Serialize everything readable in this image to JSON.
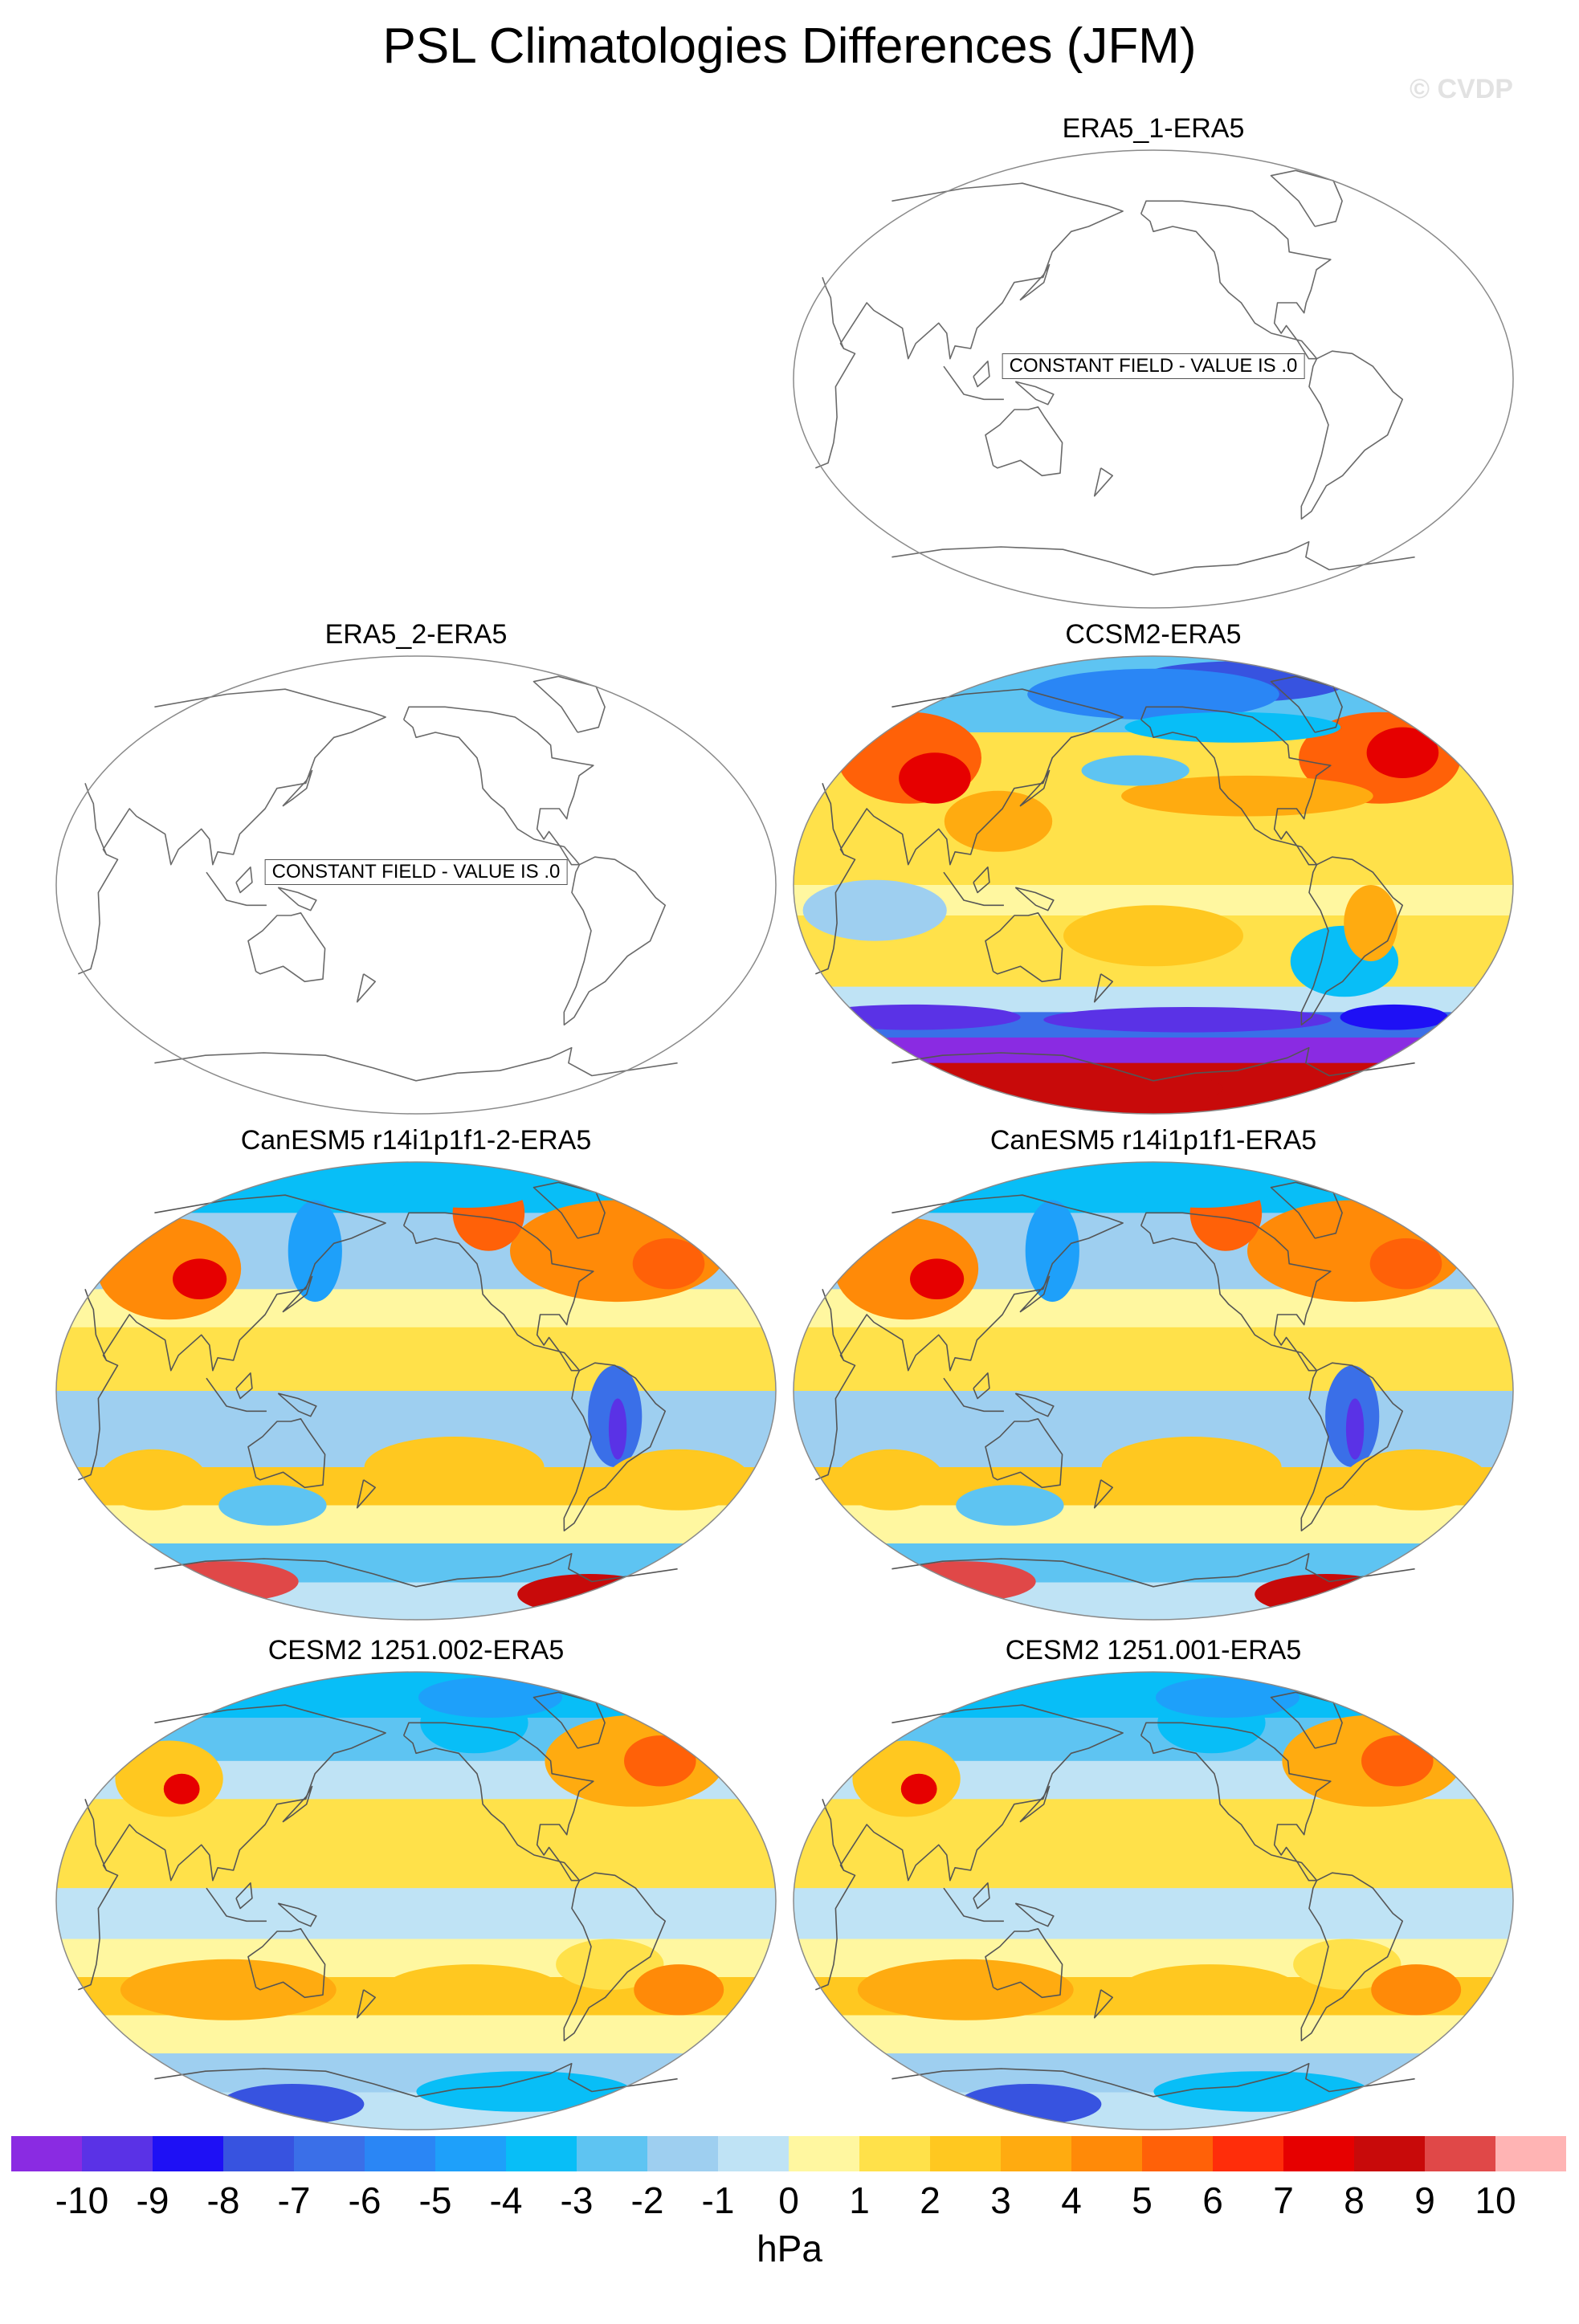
{
  "title": "PSL Climatologies Differences (JFM)",
  "watermark": "© CVDP",
  "panels": [
    {
      "title": "ERA5_1-ERA5",
      "constant_label": "CONSTANT FIELD - VALUE IS .0",
      "pattern": "constant"
    },
    {
      "title": "ERA5_2-ERA5",
      "constant_label": "CONSTANT FIELD - VALUE IS .0",
      "pattern": "constant"
    },
    {
      "title": "CCSM2-ERA5",
      "pattern": "ccsm2"
    },
    {
      "title": "CanESM5 r14i1p1f1-2-ERA5",
      "pattern": "canesm"
    },
    {
      "title": "CanESM5 r14i1p1f1-ERA5",
      "pattern": "canesm"
    },
    {
      "title": "CESM2 1251.002-ERA5",
      "pattern": "cesm"
    },
    {
      "title": "CESM2 1251.001-ERA5",
      "pattern": "cesm"
    }
  ],
  "colorbar": {
    "units": "hPa",
    "labels": [
      "-10",
      "-9",
      "-8",
      "-7",
      "-6",
      "-5",
      "-4",
      "-3",
      "-2",
      "-1",
      "0",
      "1",
      "2",
      "3",
      "4",
      "5",
      "6",
      "7",
      "8",
      "9",
      "10"
    ],
    "colors": [
      "#8a2be2",
      "#5a32e6",
      "#1e10f5",
      "#3753e0",
      "#3a6fe8",
      "#2a86f5",
      "#1ea0fa",
      "#08bef7",
      "#5ec4f2",
      "#9ecff0",
      "#bfe3f5",
      "#fff7a0",
      "#ffe14a",
      "#ffc820",
      "#ffab10",
      "#ff8a08",
      "#ff6108",
      "#ff2d0a",
      "#e60000",
      "#c80a0a",
      "#e04848",
      "#ffb4b4"
    ]
  }
}
